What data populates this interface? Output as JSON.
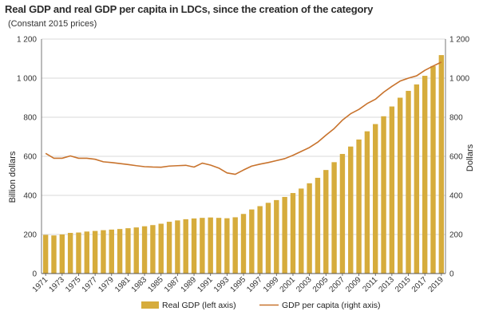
{
  "title": "Real GDP and real GDP per capita in LDCs, since the creation of the category",
  "subtitle": "(Constant 2015 prices)",
  "colors": {
    "bar": "#d6ac3c",
    "line": "#c8732d",
    "grid": "#d9d9d9",
    "axis": "#555555"
  },
  "chart_data": {
    "type": "bar",
    "categories": [
      "1971",
      "1972",
      "1973",
      "1974",
      "1975",
      "1976",
      "1977",
      "1978",
      "1979",
      "1980",
      "1981",
      "1982",
      "1983",
      "1984",
      "1985",
      "1986",
      "1987",
      "1988",
      "1989",
      "1990",
      "1991",
      "1992",
      "1993",
      "1994",
      "1995",
      "1996",
      "1997",
      "1998",
      "1999",
      "2000",
      "2001",
      "2002",
      "2003",
      "2004",
      "2005",
      "2006",
      "2007",
      "2008",
      "2009",
      "2010",
      "2011",
      "2012",
      "2013",
      "2014",
      "2015",
      "2016",
      "2017",
      "2018",
      "2019"
    ],
    "x_tick_labels": [
      "1971",
      "1973",
      "1975",
      "1977",
      "1979",
      "1981",
      "1983",
      "1985",
      "1987",
      "1989",
      "1991",
      "1993",
      "1995",
      "1997",
      "1999",
      "2001",
      "2003",
      "2005",
      "2007",
      "2009",
      "2011",
      "2013",
      "2015",
      "2017",
      "2019"
    ],
    "series": [
      {
        "name": "Real GDP (left axis)",
        "type": "bar",
        "axis": "left",
        "values": [
          198,
          195,
          200,
          208,
          210,
          215,
          218,
          222,
          225,
          228,
          232,
          236,
          242,
          248,
          255,
          265,
          272,
          278,
          282,
          285,
          287,
          285,
          283,
          288,
          305,
          328,
          345,
          362,
          376,
          392,
          412,
          435,
          462,
          490,
          530,
          570,
          612,
          650,
          686,
          728,
          765,
          805,
          855,
          900,
          935,
          968,
          1012,
          1062,
          1118
        ]
      },
      {
        "name": "GDP per capita (right axis)",
        "type": "line",
        "axis": "right",
        "values": [
          615,
          590,
          590,
          602,
          590,
          590,
          585,
          572,
          568,
          563,
          558,
          552,
          547,
          545,
          544,
          550,
          552,
          554,
          545,
          565,
          555,
          540,
          515,
          508,
          530,
          550,
          560,
          568,
          578,
          588,
          605,
          625,
          645,
          672,
          708,
          742,
          785,
          818,
          840,
          870,
          892,
          928,
          958,
          985,
          1000,
          1012,
          1040,
          1062,
          1082
        ]
      }
    ],
    "left_axis": {
      "label": "Billion dollars",
      "ylim": [
        0,
        1200
      ],
      "ticks": [
        "0",
        "200",
        "400",
        "600",
        "800",
        "1 000",
        "1 200"
      ]
    },
    "right_axis": {
      "label": "Dollars",
      "ylim": [
        0,
        1200
      ],
      "ticks": [
        "0",
        "200",
        "400",
        "600",
        "800",
        "1 000",
        "1 200"
      ]
    },
    "grid": true,
    "legend_position": "bottom"
  }
}
